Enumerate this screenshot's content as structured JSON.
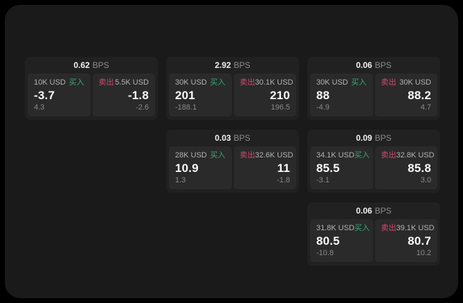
{
  "labels": {
    "bps": "BPS",
    "buy": "买入",
    "sell": "卖出"
  },
  "colors": {
    "background": "#000000",
    "panel_bg": "#1a1a1a",
    "card_bg": "#212121",
    "pane_bg": "#2a2a2a",
    "buy_green": "#3aa873",
    "sell_red": "#d14a6a"
  },
  "cards": [
    {
      "bps": "0.62",
      "buy": {
        "amount": "10K USD",
        "price": "-3.7",
        "delta": "4.3"
      },
      "sell": {
        "amount": "5.5K USD",
        "price": "-1.8",
        "delta": "-2.6"
      }
    },
    {
      "bps": "2.92",
      "buy": {
        "amount": "30K USD",
        "price": "201",
        "delta": "-188.1"
      },
      "sell": {
        "amount": "30.1K USD",
        "price": "210",
        "delta": "196.5"
      }
    },
    {
      "bps": "0.06",
      "buy": {
        "amount": "30K USD",
        "price": "88",
        "delta": "-4.9"
      },
      "sell": {
        "amount": "30K USD",
        "price": "88.2",
        "delta": "4.7"
      }
    },
    {
      "bps": "0.03",
      "buy": {
        "amount": "28K USD",
        "price": "10.9",
        "delta": "1.3"
      },
      "sell": {
        "amount": "32.6K USD",
        "price": "11",
        "delta": "-1.8"
      }
    },
    {
      "bps": "0.09",
      "buy": {
        "amount": "34.1K USD",
        "price": "85.5",
        "delta": "-3.1"
      },
      "sell": {
        "amount": "32.8K USD",
        "price": "85.8",
        "delta": "3.0"
      }
    },
    {
      "bps": "0.06",
      "buy": {
        "amount": "31.8K USD",
        "price": "80.5",
        "delta": "-10.8"
      },
      "sell": {
        "amount": "39.1K USD",
        "price": "80.7",
        "delta": "10.2"
      }
    }
  ]
}
